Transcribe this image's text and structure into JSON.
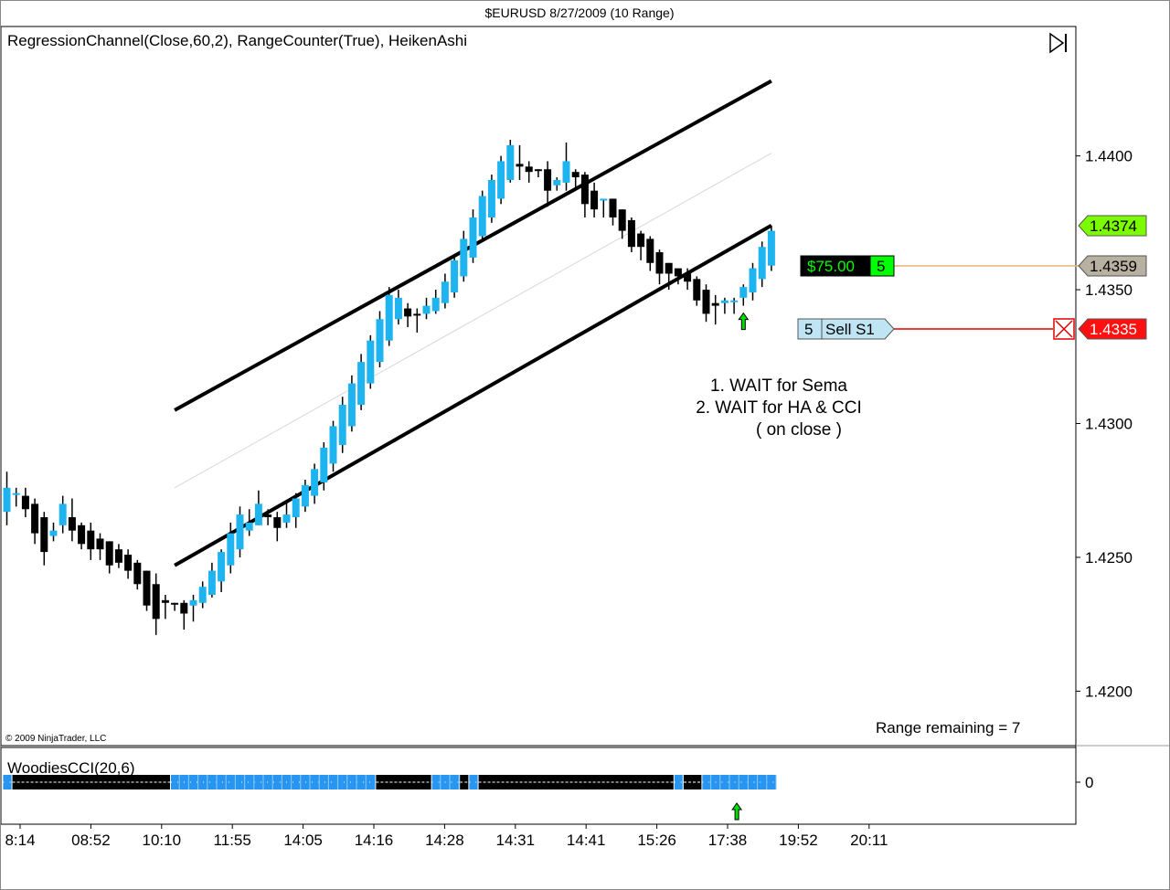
{
  "window": {
    "title": "$EURUSD  8/27/2009 (10 Range)"
  },
  "colors": {
    "up": "#1EB4F0",
    "down": "#000000",
    "cci_blue": "#2896F0",
    "profit_label": "#00FF00",
    "stop_label": "#FF0000",
    "last_price_label": "#7CFC00",
    "stop_line": "#E00000",
    "profit_line": "#E8B478",
    "order_label": "#BFE4F4"
  },
  "price_panel": {
    "indicators_label": "RegressionChannel(Close,60,2), RangeCounter(True), HeikenAshi",
    "copyright": "© 2009 NinjaTrader, LLC",
    "range_remaining": "Range remaining = 7",
    "annotation": [
      "1. WAIT for Sema",
      "2. WAIT for HA & CCI",
      "( on close )"
    ],
    "play_icon": "skip-end-icon",
    "price_markers": [
      {
        "kind": "last-price",
        "value": "1.4374"
      },
      {
        "kind": "target",
        "value": "1.4359"
      },
      {
        "kind": "stop",
        "value": "1.4335"
      }
    ],
    "pnl_label": {
      "amount": "$75.00",
      "qty": "5"
    },
    "order_label": {
      "qty": "5",
      "name": "Sell S1"
    }
  },
  "cci_panel": {
    "label": "WoodiesCCI(20,6)",
    "ytick": "0"
  },
  "chart_data": [
    {
      "type": "candlestick",
      "title": "$EURUSD  8/27/2009 (10 Range)",
      "subtitle": "RegressionChannel(Close,60,2), RangeCounter(True), HeikenAshi",
      "ylim": [
        1.418,
        1.4448
      ],
      "yticks": [
        "1.4200",
        "1.4250",
        "1.4300",
        "1.4350",
        "1.4400"
      ],
      "xticks": [
        "8:14",
        "08:52",
        "10:10",
        "11:55",
        "14:05",
        "14:16",
        "14:28",
        "14:31",
        "14:41",
        "15:26",
        "17:38",
        "19:52",
        "20:11"
      ],
      "grid": false,
      "bars": [
        [
          1.4267,
          1.4276,
          1.4262,
          1.4282,
          "up"
        ],
        [
          1.4274,
          1.4274,
          1.4269,
          1.4276,
          "up"
        ],
        [
          1.4273,
          1.4268,
          1.4265,
          1.4276,
          "down"
        ],
        [
          1.427,
          1.4259,
          1.4255,
          1.4272,
          "down"
        ],
        [
          1.4265,
          1.4252,
          1.4247,
          1.4267,
          "down"
        ],
        [
          1.4258,
          1.426,
          1.4256,
          1.4263,
          "up"
        ],
        [
          1.4262,
          1.427,
          1.4259,
          1.4273,
          "up"
        ],
        [
          1.4265,
          1.426,
          1.4256,
          1.4272,
          "down"
        ],
        [
          1.4262,
          1.4255,
          1.4253,
          1.4263,
          "down"
        ],
        [
          1.426,
          1.4253,
          1.4249,
          1.4263,
          "down"
        ],
        [
          1.4257,
          1.4253,
          1.4249,
          1.4259,
          "down"
        ],
        [
          1.4256,
          1.4247,
          1.4244,
          1.4256,
          "down"
        ],
        [
          1.4253,
          1.4248,
          1.4246,
          1.4255,
          "down"
        ],
        [
          1.4251,
          1.4245,
          1.4242,
          1.4253,
          "down"
        ],
        [
          1.4248,
          1.424,
          1.4238,
          1.4249,
          "down"
        ],
        [
          1.4245,
          1.4232,
          1.423,
          1.4245,
          "down"
        ],
        [
          1.424,
          1.4227,
          1.4221,
          1.4244,
          "down"
        ],
        [
          1.4234,
          1.4233,
          1.4227,
          1.4236,
          "down"
        ],
        [
          1.4233,
          1.4233,
          1.423,
          1.4233,
          "down"
        ],
        [
          1.4233,
          1.4229,
          1.4223,
          1.4234,
          "down"
        ],
        [
          1.4232,
          1.4234,
          1.4226,
          1.4236,
          "up"
        ],
        [
          1.4233,
          1.4239,
          1.4231,
          1.4241,
          "up"
        ],
        [
          1.4236,
          1.4245,
          1.4235,
          1.4248,
          "up"
        ],
        [
          1.4241,
          1.4252,
          1.4237,
          1.4253,
          "up"
        ],
        [
          1.4247,
          1.4259,
          1.4244,
          1.4263,
          "up"
        ],
        [
          1.4253,
          1.4266,
          1.425,
          1.4269,
          "up"
        ],
        [
          1.426,
          1.4263,
          1.4258,
          1.4268,
          "up"
        ],
        [
          1.4262,
          1.427,
          1.4262,
          1.4275,
          "up"
        ],
        [
          1.4266,
          1.4265,
          1.4262,
          1.4268,
          "down"
        ],
        [
          1.4265,
          1.4261,
          1.4256,
          1.4267,
          "down"
        ],
        [
          1.4263,
          1.4266,
          1.4261,
          1.4271,
          "up"
        ],
        [
          1.4265,
          1.4272,
          1.4261,
          1.4274,
          "up"
        ],
        [
          1.4269,
          1.4277,
          1.4267,
          1.4279,
          "up"
        ],
        [
          1.4273,
          1.4283,
          1.427,
          1.4285,
          "up"
        ],
        [
          1.4278,
          1.4291,
          1.4275,
          1.4293,
          "up"
        ],
        [
          1.4285,
          1.4299,
          1.4282,
          1.4301,
          "up"
        ],
        [
          1.4292,
          1.4307,
          1.4289,
          1.431,
          "up"
        ],
        [
          1.4299,
          1.4315,
          1.4297,
          1.4318,
          "up"
        ],
        [
          1.4307,
          1.4323,
          1.4305,
          1.4326,
          "up"
        ],
        [
          1.4315,
          1.4331,
          1.4313,
          1.4333,
          "up"
        ],
        [
          1.4323,
          1.4339,
          1.4321,
          1.4342,
          "up"
        ],
        [
          1.4331,
          1.4348,
          1.4329,
          1.4351,
          "up"
        ],
        [
          1.4339,
          1.4347,
          1.4337,
          1.435,
          "up"
        ],
        [
          1.4343,
          1.434,
          1.4336,
          1.4345,
          "down"
        ],
        [
          1.4341,
          1.4341,
          1.4334,
          1.4343,
          "down"
        ],
        [
          1.4341,
          1.4344,
          1.4339,
          1.4347,
          "up"
        ],
        [
          1.4342,
          1.4347,
          1.4341,
          1.435,
          "up"
        ],
        [
          1.4345,
          1.4353,
          1.4343,
          1.4356,
          "up"
        ],
        [
          1.4349,
          1.4361,
          1.4347,
          1.4363,
          "up"
        ],
        [
          1.4355,
          1.4369,
          1.4353,
          1.4372,
          "up"
        ],
        [
          1.4362,
          1.4377,
          1.436,
          1.438,
          "up"
        ],
        [
          1.437,
          1.4385,
          1.4368,
          1.4387,
          "up"
        ],
        [
          1.4377,
          1.4391,
          1.4375,
          1.4393,
          "up"
        ],
        [
          1.4384,
          1.4398,
          1.4382,
          1.44,
          "up"
        ],
        [
          1.4391,
          1.4404,
          1.439,
          1.4406,
          "up"
        ],
        [
          1.4397,
          1.4396,
          1.4391,
          1.4404,
          "down"
        ],
        [
          1.4396,
          1.4394,
          1.439,
          1.4398,
          "down"
        ],
        [
          1.4395,
          1.4395,
          1.4392,
          1.4395,
          "down"
        ],
        [
          1.4395,
          1.4387,
          1.4381,
          1.4398,
          "down"
        ],
        [
          1.4391,
          1.4389,
          1.4387,
          1.4392,
          "up"
        ],
        [
          1.439,
          1.4398,
          1.4387,
          1.4405,
          "up"
        ],
        [
          1.4394,
          1.4392,
          1.4388,
          1.4395,
          "down"
        ],
        [
          1.4393,
          1.4382,
          1.4377,
          1.4394,
          "down"
        ],
        [
          1.4387,
          1.438,
          1.4377,
          1.439,
          "down"
        ],
        [
          1.4384,
          1.4384,
          1.4377,
          1.4384,
          "up"
        ],
        [
          1.4384,
          1.4377,
          1.4374,
          1.4384,
          "down"
        ],
        [
          1.438,
          1.4372,
          1.4369,
          1.438,
          "down"
        ],
        [
          1.4376,
          1.4366,
          1.4364,
          1.4377,
          "down"
        ],
        [
          1.4371,
          1.4366,
          1.4361,
          1.4372,
          "down"
        ],
        [
          1.4369,
          1.436,
          1.4357,
          1.437,
          "down"
        ],
        [
          1.4364,
          1.4356,
          1.4352,
          1.4365,
          "down"
        ],
        [
          1.436,
          1.4356,
          1.435,
          1.436,
          "down"
        ],
        [
          1.4358,
          1.4355,
          1.4352,
          1.4357,
          "down"
        ],
        [
          1.4356,
          1.4353,
          1.435,
          1.4358,
          "down"
        ],
        [
          1.4354,
          1.4346,
          1.4344,
          1.4355,
          "down"
        ],
        [
          1.435,
          1.4341,
          1.4338,
          1.4352,
          "down"
        ],
        [
          1.4345,
          1.4344,
          1.4337,
          1.4348,
          "down"
        ],
        [
          1.4345,
          1.4346,
          1.4341,
          1.4347,
          "up"
        ],
        [
          1.4346,
          1.4346,
          1.4341,
          1.4347,
          "up"
        ],
        [
          1.4347,
          1.4351,
          1.4344,
          1.4352,
          "up"
        ],
        [
          1.4349,
          1.4358,
          1.4346,
          1.436,
          "up"
        ],
        [
          1.4354,
          1.4366,
          1.4351,
          1.4368,
          "up"
        ],
        [
          1.4359,
          1.4372,
          1.4357,
          1.4374,
          "up"
        ]
      ],
      "regression_channel": {
        "upper": [
          [
            18,
            1.4305
          ],
          [
            82,
            1.4428
          ]
        ],
        "middle": [
          [
            18,
            1.4276
          ],
          [
            82,
            1.4401
          ]
        ],
        "lower": [
          [
            18,
            1.4247
          ],
          [
            82,
            1.4374
          ]
        ]
      },
      "signal_arrows": [
        {
          "bar": 79,
          "direction": "up"
        }
      ]
    },
    {
      "type": "heatmap-bar",
      "title": "WoodiesCCI(20,6)",
      "ylim": [
        -1,
        1
      ],
      "yticks": [
        "0"
      ],
      "segments": [
        [
          0,
          0,
          "blue"
        ],
        [
          1,
          17,
          "black"
        ],
        [
          18,
          39,
          "blue"
        ],
        [
          40,
          45,
          "black"
        ],
        [
          46,
          48,
          "blue"
        ],
        [
          49,
          49,
          "black"
        ],
        [
          50,
          50,
          "blue"
        ],
        [
          51,
          71,
          "black"
        ],
        [
          72,
          72,
          "blue"
        ],
        [
          73,
          74,
          "black"
        ],
        [
          75,
          82,
          "blue"
        ]
      ],
      "signal_arrows": [
        {
          "bar": 78,
          "direction": "up"
        }
      ]
    }
  ]
}
